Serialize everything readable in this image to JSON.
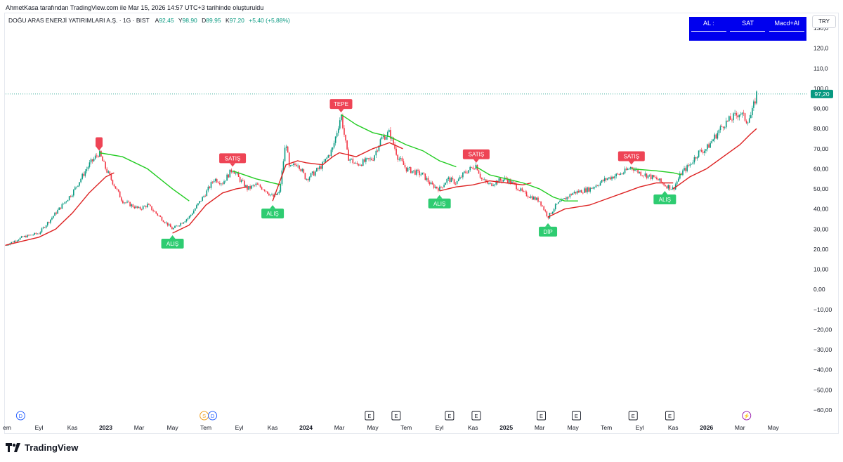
{
  "credit": "AhmetKasa tarafından TradingView.com ile Mar 15, 2026 14:57 UTC+3 tarihinde oluşturuldu",
  "legend": {
    "symbol": "DOĞU ARAS ENERJİ YATIRIMLARI A.Ş. · 1G · BIST",
    "o_label": "A",
    "o_value": "92,45",
    "h_label": "Y",
    "h_value": "98,90",
    "l_label": "D",
    "l_value": "89,95",
    "c_label": "K",
    "c_value": "97,20",
    "change": "+5,40 (+5,88%)"
  },
  "currency": "TRY",
  "table": {
    "cells": [
      "AL  :",
      "SAT",
      "Macd+Al"
    ]
  },
  "brand": "TradingView",
  "colors": {
    "up": "#089981",
    "down": "#f23645",
    "green_line": "#22cc22",
    "red_line": "#dd2222",
    "buy": "#2ecc71",
    "sell": "#ee4455",
    "table": "#0000ee"
  },
  "chart_data": {
    "type": "line",
    "title": "DOĞU ARAS ENERJİ YATIRIMLARI A.Ş. · 1G · BIST",
    "ylim": [
      -60,
      130
    ],
    "y_ticks": [
      130,
      120,
      110,
      100,
      90,
      80,
      70,
      60,
      50,
      40,
      30,
      20,
      10,
      0,
      -10,
      -20,
      -30,
      -40,
      -50,
      -60
    ],
    "y_tick_labels": [
      "130,0",
      "120,0",
      "110,0",
      "100,0",
      "90,00",
      "80,00",
      "70,00",
      "60,00",
      "50,00",
      "40,00",
      "30,00",
      "20,00",
      "10,00",
      "0,00",
      "−10,00",
      "−20,00",
      "−30,00",
      "−40,00",
      "−50,00",
      "−60,00"
    ],
    "x_range": [
      0,
      45
    ],
    "x_ticks": [
      {
        "t": 0,
        "label": "em",
        "bold": false
      },
      {
        "t": 2,
        "label": "Eyl",
        "bold": false
      },
      {
        "t": 4,
        "label": "Kas",
        "bold": false
      },
      {
        "t": 6,
        "label": "2023",
        "bold": true
      },
      {
        "t": 8,
        "label": "Mar",
        "bold": false
      },
      {
        "t": 10,
        "label": "May",
        "bold": false
      },
      {
        "t": 12,
        "label": "Tem",
        "bold": false
      },
      {
        "t": 14,
        "label": "Eyl",
        "bold": false
      },
      {
        "t": 16,
        "label": "Kas",
        "bold": false
      },
      {
        "t": 18,
        "label": "2024",
        "bold": true
      },
      {
        "t": 20,
        "label": "Mar",
        "bold": false
      },
      {
        "t": 22,
        "label": "May",
        "bold": false
      },
      {
        "t": 24,
        "label": "Tem",
        "bold": false
      },
      {
        "t": 26,
        "label": "Eyl",
        "bold": false
      },
      {
        "t": 28,
        "label": "Kas",
        "bold": false
      },
      {
        "t": 30,
        "label": "2025",
        "bold": true
      },
      {
        "t": 32,
        "label": "Mar",
        "bold": false
      },
      {
        "t": 34,
        "label": "May",
        "bold": false
      },
      {
        "t": 36,
        "label": "Tem",
        "bold": false
      },
      {
        "t": 38,
        "label": "Eyl",
        "bold": false
      },
      {
        "t": 40,
        "label": "Kas",
        "bold": false
      },
      {
        "t": 42,
        "label": "2026",
        "bold": true
      },
      {
        "t": 44,
        "label": "Mar",
        "bold": false
      },
      {
        "t": 46,
        "label": "May",
        "bold": false
      }
    ],
    "price_path": [
      [
        0,
        22
      ],
      [
        1,
        26
      ],
      [
        2,
        28
      ],
      [
        3,
        38
      ],
      [
        4,
        48
      ],
      [
        5,
        62
      ],
      [
        5.6,
        68
      ],
      [
        6,
        60
      ],
      [
        6.5,
        52
      ],
      [
        7,
        44
      ],
      [
        8,
        40
      ],
      [
        8.5,
        42
      ],
      [
        9,
        38
      ],
      [
        9.5,
        34
      ],
      [
        10,
        30
      ],
      [
        10.5,
        33
      ],
      [
        11,
        36
      ],
      [
        12,
        48
      ],
      [
        12.5,
        55
      ],
      [
        13,
        53
      ],
      [
        13.6,
        60
      ],
      [
        14,
        55
      ],
      [
        14.5,
        50
      ],
      [
        15,
        52
      ],
      [
        15.5,
        50
      ],
      [
        16,
        46
      ],
      [
        16.4,
        48
      ],
      [
        16.8,
        74
      ],
      [
        17,
        60
      ],
      [
        17.5,
        63
      ],
      [
        18,
        55
      ],
      [
        18.5,
        58
      ],
      [
        19,
        62
      ],
      [
        19.6,
        70
      ],
      [
        20.1,
        87
      ],
      [
        20.5,
        66
      ],
      [
        21,
        62
      ],
      [
        22,
        65
      ],
      [
        22.5,
        75
      ],
      [
        23,
        78
      ],
      [
        23.5,
        66
      ],
      [
        24,
        60
      ],
      [
        25,
        57
      ],
      [
        25.5,
        52
      ],
      [
        26,
        50
      ],
      [
        26.5,
        55
      ],
      [
        27,
        53
      ],
      [
        27.5,
        58
      ],
      [
        28.2,
        62
      ],
      [
        28.5,
        55
      ],
      [
        29,
        52
      ],
      [
        29.5,
        54
      ],
      [
        30,
        55
      ],
      [
        30.5,
        52
      ],
      [
        31,
        48
      ],
      [
        31.5,
        46
      ],
      [
        32,
        44
      ],
      [
        32.5,
        36
      ],
      [
        33,
        42
      ],
      [
        33.5,
        45
      ],
      [
        34,
        48
      ],
      [
        35,
        50
      ],
      [
        36,
        55
      ],
      [
        37,
        58
      ],
      [
        37.5,
        61
      ],
      [
        38,
        58
      ],
      [
        39,
        55
      ],
      [
        39.5,
        52
      ],
      [
        40,
        50
      ],
      [
        40.5,
        58
      ],
      [
        41,
        62
      ],
      [
        41.5,
        68
      ],
      [
        42,
        70
      ],
      [
        42.5,
        76
      ],
      [
        43,
        82
      ],
      [
        43.5,
        85
      ],
      [
        44,
        88
      ],
      [
        44.4,
        84
      ],
      [
        44.7,
        87
      ],
      [
        45,
        97.2
      ]
    ],
    "series": [
      {
        "name": "green-trend-1",
        "color": "#22cc22",
        "points": [
          [
            5.6,
            68
          ],
          [
            7,
            66
          ],
          [
            8.5,
            60
          ],
          [
            10,
            50
          ],
          [
            11,
            44
          ]
        ]
      },
      {
        "name": "red-trend-1",
        "color": "#dd2222",
        "points": [
          [
            0,
            22
          ],
          [
            2,
            26
          ],
          [
            3,
            30
          ],
          [
            4,
            38
          ],
          [
            5,
            48
          ],
          [
            6,
            56
          ],
          [
            6.5,
            58
          ]
        ]
      },
      {
        "name": "red-trend-2",
        "color": "#dd2222",
        "points": [
          [
            10,
            28
          ],
          [
            11,
            32
          ],
          [
            12,
            42
          ],
          [
            13,
            48
          ],
          [
            13.8,
            50
          ],
          [
            14.5,
            51
          ]
        ]
      },
      {
        "name": "green-trend-2",
        "color": "#22cc22",
        "points": [
          [
            13.6,
            59
          ],
          [
            15,
            55
          ],
          [
            16.5,
            52
          ]
        ]
      },
      {
        "name": "red-trend-3",
        "color": "#dd2222",
        "points": [
          [
            16,
            44
          ],
          [
            16.8,
            62
          ],
          [
            17.5,
            64
          ],
          [
            18,
            63
          ],
          [
            19,
            62
          ],
          [
            19.6,
            66
          ],
          [
            20,
            68
          ]
        ]
      },
      {
        "name": "green-trend-3",
        "color": "#22cc22",
        "points": [
          [
            20.1,
            87
          ],
          [
            21,
            82
          ],
          [
            22,
            78
          ],
          [
            23,
            76
          ],
          [
            24,
            72
          ],
          [
            25,
            69
          ],
          [
            26,
            64
          ],
          [
            27,
            61
          ]
        ]
      },
      {
        "name": "red-trend-4",
        "color": "#dd2222",
        "points": [
          [
            20,
            68
          ],
          [
            21,
            66
          ],
          [
            22,
            70
          ],
          [
            23,
            73
          ],
          [
            23.8,
            70
          ]
        ]
      },
      {
        "name": "red-trend-5",
        "color": "#dd2222",
        "points": [
          [
            26,
            49
          ],
          [
            27,
            51
          ],
          [
            28,
            52
          ],
          [
            29,
            54
          ],
          [
            30,
            53
          ],
          [
            31,
            52
          ],
          [
            31.5,
            53
          ]
        ]
      },
      {
        "name": "green-trend-4",
        "color": "#22cc22",
        "points": [
          [
            28.2,
            61
          ],
          [
            29,
            57
          ],
          [
            30,
            55
          ],
          [
            31,
            53
          ],
          [
            32,
            50
          ],
          [
            32.8,
            46
          ],
          [
            33.5,
            44
          ],
          [
            34.3,
            44
          ]
        ]
      },
      {
        "name": "red-trend-6",
        "color": "#dd2222",
        "points": [
          [
            32.5,
            36
          ],
          [
            33.5,
            40
          ],
          [
            35,
            42
          ],
          [
            36,
            45
          ],
          [
            37,
            48
          ],
          [
            38,
            51
          ],
          [
            39,
            53
          ],
          [
            40,
            53
          ]
        ]
      },
      {
        "name": "green-trend-5",
        "color": "#22cc22",
        "points": [
          [
            37.5,
            60
          ],
          [
            39,
            59
          ],
          [
            40,
            58
          ],
          [
            40.5,
            57
          ]
        ]
      },
      {
        "name": "red-trend-7",
        "color": "#dd2222",
        "points": [
          [
            40,
            50
          ],
          [
            41,
            56
          ],
          [
            42,
            60
          ],
          [
            43,
            66
          ],
          [
            44,
            72
          ],
          [
            44.6,
            77
          ],
          [
            45,
            80
          ]
        ]
      }
    ],
    "annotations": [
      {
        "label": "",
        "kind": "sell",
        "t": 5.6,
        "y": 68,
        "pos": "above"
      },
      {
        "label": "SATIŞ",
        "kind": "sell",
        "t": 13.6,
        "y": 60,
        "pos": "above"
      },
      {
        "label": "TEPE",
        "kind": "sell",
        "t": 20.1,
        "y": 87,
        "pos": "above"
      },
      {
        "label": "SATIŞ",
        "kind": "sell",
        "t": 28.2,
        "y": 62,
        "pos": "above"
      },
      {
        "label": "SATIŞ",
        "kind": "sell",
        "t": 37.5,
        "y": 61,
        "pos": "above"
      },
      {
        "label": "ALIŞ",
        "kind": "buy",
        "t": 10,
        "y": 28,
        "pos": "below"
      },
      {
        "label": "ALIŞ",
        "kind": "buy",
        "t": 16,
        "y": 43,
        "pos": "below"
      },
      {
        "label": "ALIŞ",
        "kind": "buy",
        "t": 26,
        "y": 48,
        "pos": "below"
      },
      {
        "label": "DİP",
        "kind": "buy",
        "t": 32.5,
        "y": 34,
        "pos": "below"
      },
      {
        "label": "ALIŞ",
        "kind": "buy",
        "t": 39.5,
        "y": 50,
        "pos": "below"
      }
    ],
    "last_price": {
      "value": 97.2,
      "label": "97,20"
    },
    "event_markers": [
      {
        "t": 0.9,
        "label": "D",
        "kind": "dividend"
      },
      {
        "t": 11.9,
        "label": "S",
        "kind": "split"
      },
      {
        "t": 12.4,
        "label": "D",
        "kind": "dividend"
      },
      {
        "t": 21.8,
        "label": "E",
        "kind": "earnings"
      },
      {
        "t": 23.4,
        "label": "E",
        "kind": "earnings"
      },
      {
        "t": 26.6,
        "label": "E",
        "kind": "earnings"
      },
      {
        "t": 28.2,
        "label": "E",
        "kind": "earnings"
      },
      {
        "t": 32.1,
        "label": "E",
        "kind": "earnings"
      },
      {
        "t": 34.2,
        "label": "E",
        "kind": "earnings"
      },
      {
        "t": 37.6,
        "label": "E",
        "kind": "earnings"
      },
      {
        "t": 39.8,
        "label": "E",
        "kind": "earnings"
      },
      {
        "t": 44.4,
        "label": "⚡",
        "kind": "flash"
      }
    ]
  }
}
